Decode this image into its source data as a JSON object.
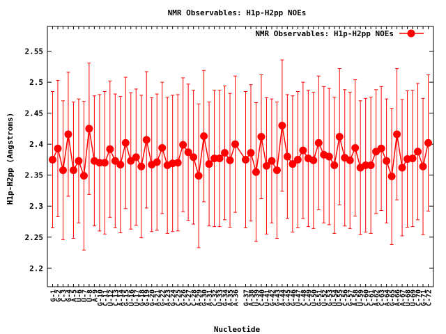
{
  "chart_data": {
    "type": "line",
    "title": "NMR Observables: H1p-H2pp NOEs",
    "xlabel": "Nucleotide",
    "ylabel": "H1p-H2pp (Angstroms)",
    "ylim": [
      2.17,
      2.59
    ],
    "yticks": [
      "2.2",
      "2.25",
      "2.3",
      "2.35",
      "2.4",
      "2.45",
      "2.5",
      "2.55"
    ],
    "grid": false,
    "legend_position": "top-right",
    "series": [
      {
        "name": "NMR Observables: H1p-H2pp NOEs",
        "color": "#ff0000",
        "points": [
          {
            "x": 1,
            "label": "G-1",
            "y": 2.375,
            "err": 0.11
          },
          {
            "x": 2,
            "label": "G-2",
            "y": 2.393,
            "err": 0.11
          },
          {
            "x": 3,
            "label": "C-3",
            "y": 2.358,
            "err": 0.112
          },
          {
            "x": 4,
            "label": "G-4",
            "y": 2.416,
            "err": 0.1
          },
          {
            "x": 5,
            "label": "A-5",
            "y": 2.358,
            "err": 0.11
          },
          {
            "x": 6,
            "label": "U-6",
            "y": 2.373,
            "err": 0.1
          },
          {
            "x": 7,
            "label": "U-7",
            "y": 2.349,
            "err": 0.12
          },
          {
            "x": 8,
            "label": "U-8",
            "y": 2.425,
            "err": 0.106
          },
          {
            "x": 9,
            "label": "A-9",
            "y": 2.373,
            "err": 0.105
          },
          {
            "x": 10,
            "label": "G-10",
            "y": 2.37,
            "err": 0.11
          },
          {
            "x": 11,
            "label": "C-11",
            "y": 2.37,
            "err": 0.115
          },
          {
            "x": 12,
            "label": "U-12",
            "y": 2.392,
            "err": 0.11
          },
          {
            "x": 13,
            "label": "C-13",
            "y": 2.373,
            "err": 0.108
          },
          {
            "x": 14,
            "label": "A-14",
            "y": 2.367,
            "err": 0.11
          },
          {
            "x": 15,
            "label": "G-15",
            "y": 2.402,
            "err": 0.106
          },
          {
            "x": 16,
            "label": "U-16",
            "y": 2.373,
            "err": 0.11
          },
          {
            "x": 17,
            "label": "U-17",
            "y": 2.379,
            "err": 0.11
          },
          {
            "x": 18,
            "label": "G-18",
            "y": 2.364,
            "err": 0.115
          },
          {
            "x": 19,
            "label": "G-19",
            "y": 2.407,
            "err": 0.11
          },
          {
            "x": 20,
            "label": "G-20",
            "y": 2.367,
            "err": 0.108
          },
          {
            "x": 21,
            "label": "A-21",
            "y": 2.371,
            "err": 0.11
          },
          {
            "x": 22,
            "label": "G-22",
            "y": 2.394,
            "err": 0.106
          },
          {
            "x": 23,
            "label": "A-23",
            "y": 2.366,
            "err": 0.11
          },
          {
            "x": 24,
            "label": "G-24",
            "y": 2.369,
            "err": 0.11
          },
          {
            "x": 25,
            "label": "C-25",
            "y": 2.37,
            "err": 0.11
          },
          {
            "x": 26,
            "label": "G-26",
            "y": 2.399,
            "err": 0.108
          },
          {
            "x": 27,
            "label": "C-27",
            "y": 2.387,
            "err": 0.11
          },
          {
            "x": 28,
            "label": "C-28",
            "y": 2.379,
            "err": 0.108
          },
          {
            "x": 29,
            "label": "A-29",
            "y": 2.349,
            "err": 0.116
          },
          {
            "x": 30,
            "label": "G-30",
            "y": 2.413,
            "err": 0.106
          },
          {
            "x": 31,
            "label": "A-31",
            "y": 2.368,
            "err": 0.1
          },
          {
            "x": 32,
            "label": "C-32",
            "y": 2.377,
            "err": 0.11
          },
          {
            "x": 33,
            "label": "U-33",
            "y": 2.377,
            "err": 0.11
          },
          {
            "x": 34,
            "label": "G-34",
            "y": 2.386,
            "err": 0.108
          },
          {
            "x": 35,
            "label": "A-35",
            "y": 2.374,
            "err": 0.108
          },
          {
            "x": 36,
            "label": "A-36",
            "y": 2.4,
            "err": 0.11
          },
          {
            "x": 38,
            "label": "G-37",
            "y": 2.375,
            "err": 0.11
          },
          {
            "x": 39,
            "label": "A-38",
            "y": 2.386,
            "err": 0.11
          },
          {
            "x": 40,
            "label": "U-39",
            "y": 2.355,
            "err": 0.112
          },
          {
            "x": 41,
            "label": "C-40",
            "y": 2.412,
            "err": 0.1
          },
          {
            "x": 42,
            "label": "U-41",
            "y": 2.365,
            "err": 0.11
          },
          {
            "x": 43,
            "label": "G-42",
            "y": 2.373,
            "err": 0.1
          },
          {
            "x": 44,
            "label": "G-43",
            "y": 2.358,
            "err": 0.11
          },
          {
            "x": 45,
            "label": "A-44",
            "y": 2.43,
            "err": 0.106
          },
          {
            "x": 46,
            "label": "G-45",
            "y": 2.38,
            "err": 0.1
          },
          {
            "x": 47,
            "label": "G-46",
            "y": 2.368,
            "err": 0.11
          },
          {
            "x": 48,
            "label": "U-47",
            "y": 2.375,
            "err": 0.11
          },
          {
            "x": 49,
            "label": "C-48",
            "y": 2.39,
            "err": 0.11
          },
          {
            "x": 50,
            "label": "C-49",
            "y": 2.377,
            "err": 0.11
          },
          {
            "x": 51,
            "label": "U-50",
            "y": 2.374,
            "err": 0.11
          },
          {
            "x": 52,
            "label": "G-51",
            "y": 2.402,
            "err": 0.108
          },
          {
            "x": 53,
            "label": "U-52",
            "y": 2.383,
            "err": 0.11
          },
          {
            "x": 54,
            "label": "G-53",
            "y": 2.38,
            "err": 0.11
          },
          {
            "x": 55,
            "label": "U-54",
            "y": 2.366,
            "err": 0.11
          },
          {
            "x": 56,
            "label": "U-55",
            "y": 2.412,
            "err": 0.11
          },
          {
            "x": 57,
            "label": "C-56",
            "y": 2.378,
            "err": 0.11
          },
          {
            "x": 58,
            "label": "G-57",
            "y": 2.374,
            "err": 0.11
          },
          {
            "x": 59,
            "label": "A-58",
            "y": 2.394,
            "err": 0.11
          },
          {
            "x": 60,
            "label": "U-59",
            "y": 2.362,
            "err": 0.108
          },
          {
            "x": 61,
            "label": "C-60",
            "y": 2.366,
            "err": 0.108
          },
          {
            "x": 62,
            "label": "C-61",
            "y": 2.366,
            "err": 0.11
          },
          {
            "x": 63,
            "label": "A-62",
            "y": 2.388,
            "err": 0.1
          },
          {
            "x": 64,
            "label": "C-63",
            "y": 2.393,
            "err": 0.1
          },
          {
            "x": 65,
            "label": "A-64",
            "y": 2.373,
            "err": 0.1
          },
          {
            "x": 66,
            "label": "G-65",
            "y": 2.348,
            "err": 0.11
          },
          {
            "x": 67,
            "label": "A-66",
            "y": 2.416,
            "err": 0.106
          },
          {
            "x": 68,
            "label": "A-67",
            "y": 2.362,
            "err": 0.11
          },
          {
            "x": 69,
            "label": "U-68",
            "y": 2.376,
            "err": 0.11
          },
          {
            "x": 70,
            "label": "U-69",
            "y": 2.377,
            "err": 0.11
          },
          {
            "x": 71,
            "label": "C-70",
            "y": 2.388,
            "err": 0.11
          },
          {
            "x": 72,
            "label": "G-71",
            "y": 2.364,
            "err": 0.11
          },
          {
            "x": 73,
            "label": "C-72",
            "y": 2.402,
            "err": 0.11
          }
        ]
      }
    ]
  }
}
